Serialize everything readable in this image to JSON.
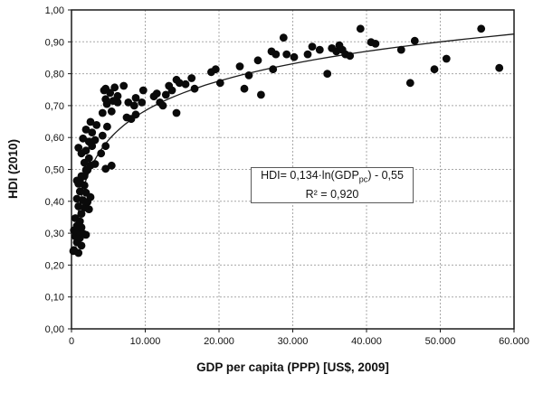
{
  "chart_data": {
    "type": "scatter",
    "xlabel": "GDP per capita (PPP) [US$, 2009]",
    "ylabel": "HDI (2010)",
    "xlim": [
      0,
      60000
    ],
    "ylim": [
      0.0,
      1.0
    ],
    "grid": "dashed gray, both axes",
    "legend": "none",
    "marker_color": "#0a0a0a",
    "fit_line_color": "#1a1a1a",
    "x_ticks": [
      {
        "value": 0,
        "label": "0"
      },
      {
        "value": 10000,
        "label": "10.000"
      },
      {
        "value": 20000,
        "label": "20.000"
      },
      {
        "value": 30000,
        "label": "30.000"
      },
      {
        "value": 40000,
        "label": "40.000"
      },
      {
        "value": 50000,
        "label": "50.000"
      },
      {
        "value": 60000,
        "label": "60.000"
      }
    ],
    "y_ticks": [
      {
        "value": 0.0,
        "label": "0,00"
      },
      {
        "value": 0.1,
        "label": "0,10"
      },
      {
        "value": 0.2,
        "label": "0,20"
      },
      {
        "value": 0.3,
        "label": "0,30"
      },
      {
        "value": 0.4,
        "label": "0,40"
      },
      {
        "value": 0.5,
        "label": "0,50"
      },
      {
        "value": 0.6,
        "label": "0,60"
      },
      {
        "value": 0.7,
        "label": "0,70"
      },
      {
        "value": 0.8,
        "label": "0,80"
      },
      {
        "value": 0.9,
        "label": "0,90"
      },
      {
        "value": 1.0,
        "label": "1,00"
      }
    ],
    "annotation": {
      "eq_prefix": "HDI= 0,134·ln(GDP",
      "eq_sub": "pc",
      "eq_suffix": ") - 0,55",
      "r2": "R² = 0,920"
    },
    "fit": {
      "type": "logarithmic",
      "a": 0.134,
      "b": -0.55,
      "domain": [
        500,
        60000
      ]
    },
    "points": [
      [
        250,
        0.244
      ],
      [
        945,
        0.238
      ],
      [
        327,
        0.247
      ],
      [
        736,
        0.271
      ],
      [
        1350,
        0.261
      ],
      [
        531,
        0.29
      ],
      [
        1140,
        0.285
      ],
      [
        1963,
        0.295
      ],
      [
        945,
        0.304
      ],
      [
        1560,
        0.299
      ],
      [
        327,
        0.309
      ],
      [
        736,
        0.323
      ],
      [
        1350,
        0.318
      ],
      [
        531,
        0.347
      ],
      [
        1140,
        0.337
      ],
      [
        1350,
        0.361
      ],
      [
        2370,
        0.375
      ],
      [
        945,
        0.384
      ],
      [
        1760,
        0.38
      ],
      [
        736,
        0.408
      ],
      [
        1560,
        0.403
      ],
      [
        2170,
        0.398
      ],
      [
        1140,
        0.431
      ],
      [
        1963,
        0.427
      ],
      [
        2580,
        0.413
      ],
      [
        945,
        0.455
      ],
      [
        1760,
        0.45
      ],
      [
        736,
        0.465
      ],
      [
        1350,
        0.479
      ],
      [
        1963,
        0.498
      ],
      [
        3190,
        0.517
      ],
      [
        4626,
        0.502
      ],
      [
        5440,
        0.512
      ],
      [
        4012,
        0.55
      ],
      [
        4626,
        0.573
      ],
      [
        2370,
        0.587
      ],
      [
        1560,
        0.597
      ],
      [
        4210,
        0.606
      ],
      [
        2780,
        0.616
      ],
      [
        1960,
        0.625
      ],
      [
        3400,
        0.639
      ],
      [
        2580,
        0.649
      ],
      [
        8100,
        0.658
      ],
      [
        7480,
        0.663
      ],
      [
        4210,
        0.677
      ],
      [
        5440,
        0.682
      ],
      [
        4800,
        0.705
      ],
      [
        6260,
        0.71
      ],
      [
        7700,
        0.71
      ],
      [
        1140,
        0.465
      ],
      [
        1760,
        0.479
      ],
      [
        2170,
        0.498
      ],
      [
        2580,
        0.512
      ],
      [
        1760,
        0.521
      ],
      [
        2370,
        0.535
      ],
      [
        1350,
        0.55
      ],
      [
        1963,
        0.559
      ],
      [
        2780,
        0.573
      ],
      [
        945,
        0.568
      ],
      [
        3190,
        0.592
      ],
      [
        4830,
        0.634
      ],
      [
        4630,
        0.753
      ],
      [
        5850,
        0.757
      ],
      [
        7076,
        0.762
      ],
      [
        4420,
        0.748
      ],
      [
        5240,
        0.74
      ],
      [
        6260,
        0.73
      ],
      [
        4626,
        0.72
      ],
      [
        5645,
        0.715
      ],
      [
        8710,
        0.724
      ],
      [
        8505,
        0.7
      ],
      [
        8710,
        0.672
      ],
      [
        9530,
        0.71
      ],
      [
        9730,
        0.748
      ],
      [
        11165,
        0.729
      ],
      [
        11570,
        0.738
      ],
      [
        11990,
        0.71
      ],
      [
        12390,
        0.7
      ],
      [
        12800,
        0.734
      ],
      [
        13210,
        0.762
      ],
      [
        13620,
        0.748
      ],
      [
        14230,
        0.781
      ],
      [
        14640,
        0.771
      ],
      [
        15460,
        0.767
      ],
      [
        14230,
        0.677
      ],
      [
        16280,
        0.786
      ],
      [
        16690,
        0.753
      ],
      [
        18940,
        0.805
      ],
      [
        19550,
        0.814
      ],
      [
        20160,
        0.771
      ],
      [
        22820,
        0.823
      ],
      [
        24050,
        0.795
      ],
      [
        23440,
        0.753
      ],
      [
        25280,
        0.842
      ],
      [
        25690,
        0.734
      ],
      [
        27120,
        0.87
      ],
      [
        27700,
        0.861
      ],
      [
        28750,
        0.913
      ],
      [
        29160,
        0.861
      ],
      [
        27330,
        0.814
      ],
      [
        30180,
        0.852
      ],
      [
        32020,
        0.861
      ],
      [
        32640,
        0.885
      ],
      [
        33660,
        0.875
      ],
      [
        34690,
        0.8
      ],
      [
        35300,
        0.88
      ],
      [
        35910,
        0.87
      ],
      [
        36320,
        0.889
      ],
      [
        36730,
        0.875
      ],
      [
        37140,
        0.861
      ],
      [
        37750,
        0.856
      ],
      [
        39180,
        0.941
      ],
      [
        40610,
        0.899
      ],
      [
        41220,
        0.894
      ],
      [
        44700,
        0.875
      ],
      [
        45930,
        0.771
      ],
      [
        46540,
        0.903
      ],
      [
        49200,
        0.814
      ],
      [
        50830,
        0.847
      ],
      [
        55540,
        0.941
      ],
      [
        58000,
        0.818
      ]
    ]
  }
}
